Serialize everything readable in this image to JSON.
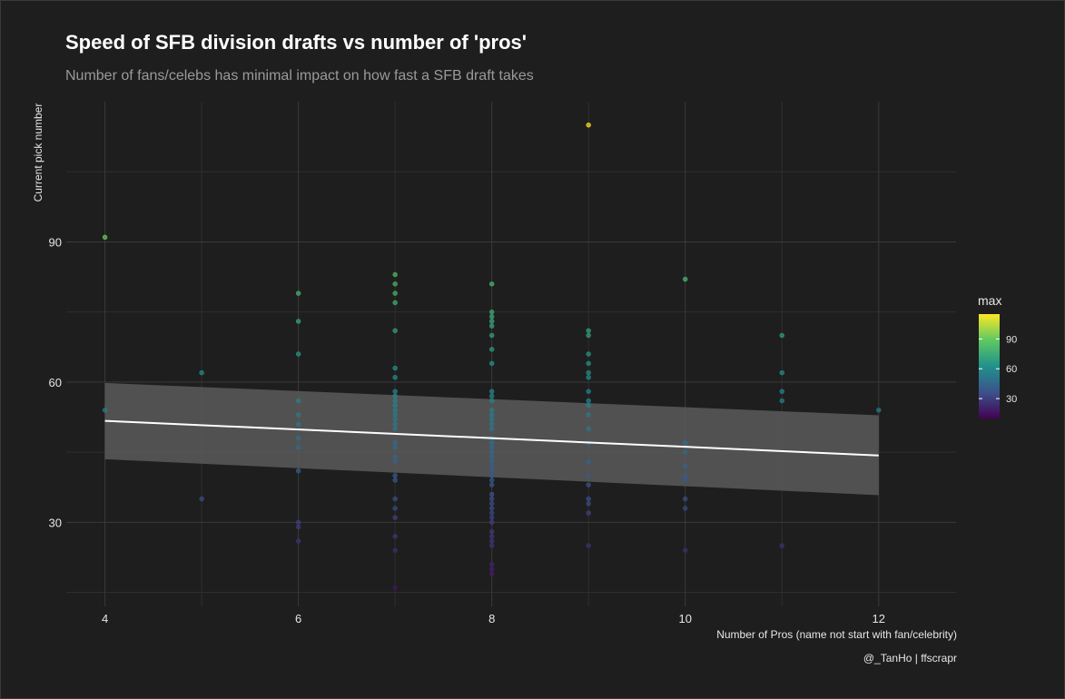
{
  "chart_data": {
    "type": "scatter",
    "title": "Speed of SFB division drafts vs number of 'pros'",
    "subtitle": "Number of fans/celebs has minimal impact on how fast a SFB draft takes",
    "xlabel": "Number of Pros (name not start with fan/celebrity)",
    "ylabel": "Current pick number",
    "caption": "@_TanHo | ffscrapr",
    "xlim": [
      3.6,
      12.8
    ],
    "ylim": [
      12,
      120
    ],
    "x_ticks": [
      4,
      6,
      8,
      10,
      12
    ],
    "y_ticks": [
      30,
      60,
      90
    ],
    "grid": true,
    "legend": {
      "title": "max",
      "ticks": [
        30,
        60,
        90
      ],
      "range": [
        10,
        115
      ],
      "colors": [
        "#440154",
        "#3b528b",
        "#21918c",
        "#5ec962",
        "#fde725"
      ],
      "placement": "right"
    },
    "trend": {
      "x": [
        4,
        12
      ],
      "y": [
        51.7,
        44.3
      ],
      "ci_lower": [
        43.5,
        35.8
      ],
      "ci_upper": [
        59.8,
        52.9
      ],
      "color": "#ffffff",
      "band_color": "#5a5a5a"
    },
    "points": [
      {
        "x": 4,
        "y": 91
      },
      {
        "x": 4,
        "y": 54
      },
      {
        "x": 5,
        "y": 62
      },
      {
        "x": 5,
        "y": 35
      },
      {
        "x": 6,
        "y": 79
      },
      {
        "x": 6,
        "y": 73
      },
      {
        "x": 6,
        "y": 66
      },
      {
        "x": 6,
        "y": 56
      },
      {
        "x": 6,
        "y": 53
      },
      {
        "x": 6,
        "y": 51
      },
      {
        "x": 6,
        "y": 48
      },
      {
        "x": 6,
        "y": 46
      },
      {
        "x": 6,
        "y": 41
      },
      {
        "x": 6,
        "y": 30
      },
      {
        "x": 6,
        "y": 29
      },
      {
        "x": 6,
        "y": 26
      },
      {
        "x": 7,
        "y": 83
      },
      {
        "x": 7,
        "y": 81
      },
      {
        "x": 7,
        "y": 79
      },
      {
        "x": 7,
        "y": 77
      },
      {
        "x": 7,
        "y": 71
      },
      {
        "x": 7,
        "y": 63
      },
      {
        "x": 7,
        "y": 61
      },
      {
        "x": 7,
        "y": 58
      },
      {
        "x": 7,
        "y": 57
      },
      {
        "x": 7,
        "y": 56
      },
      {
        "x": 7,
        "y": 55
      },
      {
        "x": 7,
        "y": 54
      },
      {
        "x": 7,
        "y": 53
      },
      {
        "x": 7,
        "y": 52
      },
      {
        "x": 7,
        "y": 51
      },
      {
        "x": 7,
        "y": 50
      },
      {
        "x": 7,
        "y": 47
      },
      {
        "x": 7,
        "y": 46
      },
      {
        "x": 7,
        "y": 44
      },
      {
        "x": 7,
        "y": 43
      },
      {
        "x": 7,
        "y": 40
      },
      {
        "x": 7,
        "y": 39
      },
      {
        "x": 7,
        "y": 35
      },
      {
        "x": 7,
        "y": 33
      },
      {
        "x": 7,
        "y": 31
      },
      {
        "x": 7,
        "y": 27
      },
      {
        "x": 7,
        "y": 24
      },
      {
        "x": 7,
        "y": 16
      },
      {
        "x": 8,
        "y": 81
      },
      {
        "x": 8,
        "y": 75
      },
      {
        "x": 8,
        "y": 74
      },
      {
        "x": 8,
        "y": 73
      },
      {
        "x": 8,
        "y": 72
      },
      {
        "x": 8,
        "y": 70
      },
      {
        "x": 8,
        "y": 67
      },
      {
        "x": 8,
        "y": 64
      },
      {
        "x": 8,
        "y": 58
      },
      {
        "x": 8,
        "y": 57
      },
      {
        "x": 8,
        "y": 56
      },
      {
        "x": 8,
        "y": 54
      },
      {
        "x": 8,
        "y": 53
      },
      {
        "x": 8,
        "y": 52
      },
      {
        "x": 8,
        "y": 51
      },
      {
        "x": 8,
        "y": 50
      },
      {
        "x": 8,
        "y": 48
      },
      {
        "x": 8,
        "y": 47
      },
      {
        "x": 8,
        "y": 46
      },
      {
        "x": 8,
        "y": 45
      },
      {
        "x": 8,
        "y": 44
      },
      {
        "x": 8,
        "y": 43
      },
      {
        "x": 8,
        "y": 42
      },
      {
        "x": 8,
        "y": 41
      },
      {
        "x": 8,
        "y": 40
      },
      {
        "x": 8,
        "y": 39
      },
      {
        "x": 8,
        "y": 38
      },
      {
        "x": 8,
        "y": 36
      },
      {
        "x": 8,
        "y": 35
      },
      {
        "x": 8,
        "y": 34
      },
      {
        "x": 8,
        "y": 33
      },
      {
        "x": 8,
        "y": 32
      },
      {
        "x": 8,
        "y": 31
      },
      {
        "x": 8,
        "y": 30
      },
      {
        "x": 8,
        "y": 28
      },
      {
        "x": 8,
        "y": 27
      },
      {
        "x": 8,
        "y": 26
      },
      {
        "x": 8,
        "y": 25
      },
      {
        "x": 8,
        "y": 21
      },
      {
        "x": 8,
        "y": 20
      },
      {
        "x": 8,
        "y": 19
      },
      {
        "x": 9,
        "y": 115
      },
      {
        "x": 9,
        "y": 71
      },
      {
        "x": 9,
        "y": 70
      },
      {
        "x": 9,
        "y": 66
      },
      {
        "x": 9,
        "y": 64
      },
      {
        "x": 9,
        "y": 62
      },
      {
        "x": 9,
        "y": 61
      },
      {
        "x": 9,
        "y": 58
      },
      {
        "x": 9,
        "y": 56
      },
      {
        "x": 9,
        "y": 55
      },
      {
        "x": 9,
        "y": 53
      },
      {
        "x": 9,
        "y": 50
      },
      {
        "x": 9,
        "y": 47
      },
      {
        "x": 9,
        "y": 43
      },
      {
        "x": 9,
        "y": 40
      },
      {
        "x": 9,
        "y": 38
      },
      {
        "x": 9,
        "y": 35
      },
      {
        "x": 9,
        "y": 34
      },
      {
        "x": 9,
        "y": 32
      },
      {
        "x": 9,
        "y": 25
      },
      {
        "x": 10,
        "y": 82
      },
      {
        "x": 10,
        "y": 47
      },
      {
        "x": 10,
        "y": 45
      },
      {
        "x": 10,
        "y": 42
      },
      {
        "x": 10,
        "y": 40
      },
      {
        "x": 10,
        "y": 39
      },
      {
        "x": 10,
        "y": 35
      },
      {
        "x": 10,
        "y": 33
      },
      {
        "x": 10,
        "y": 24
      },
      {
        "x": 11,
        "y": 70
      },
      {
        "x": 11,
        "y": 62
      },
      {
        "x": 11,
        "y": 58
      },
      {
        "x": 11,
        "y": 56
      },
      {
        "x": 11,
        "y": 25
      },
      {
        "x": 12,
        "y": 54
      }
    ]
  }
}
